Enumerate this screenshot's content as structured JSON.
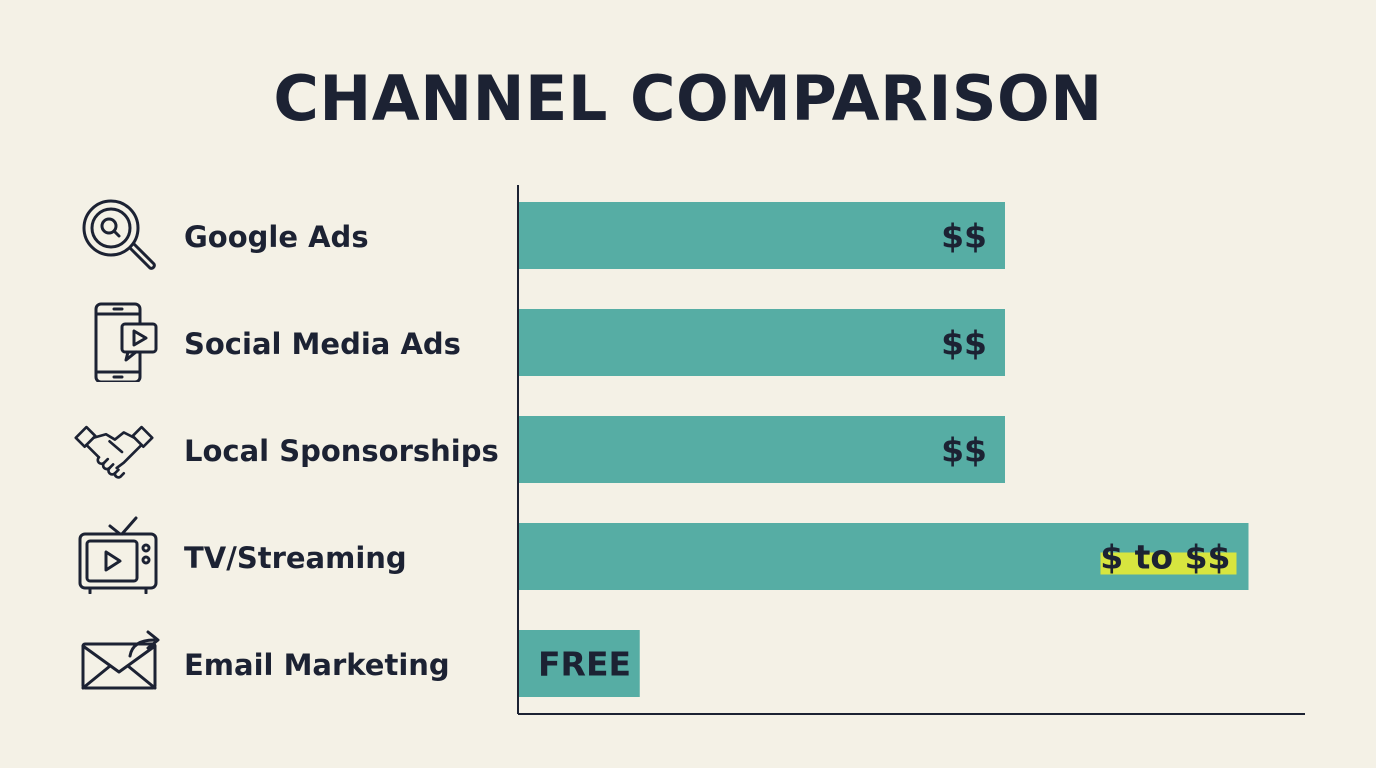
{
  "title": "CHANNEL COMPARISON",
  "chart_data": {
    "type": "bar",
    "orientation": "horizontal",
    "categories": [
      "Google Ads",
      "Social Media Ads",
      "Local Sponsorships",
      "TV/Streaming",
      "Email Marketing"
    ],
    "values": [
      2,
      2,
      2,
      3,
      0.5
    ],
    "data_labels": [
      "$$",
      "$$",
      "$$",
      "$ to $$",
      "FREE"
    ],
    "highlighted_label": "$ to $$",
    "colors": {
      "bar": "#56ada4",
      "highlight": "#d7e53f",
      "text": "#1c2233",
      "axis": "#1c2233"
    },
    "icons": [
      "magnifier-icon",
      "smartphone-video-icon",
      "handshake-icon",
      "tv-play-icon",
      "email-send-icon"
    ],
    "grid": false
  }
}
